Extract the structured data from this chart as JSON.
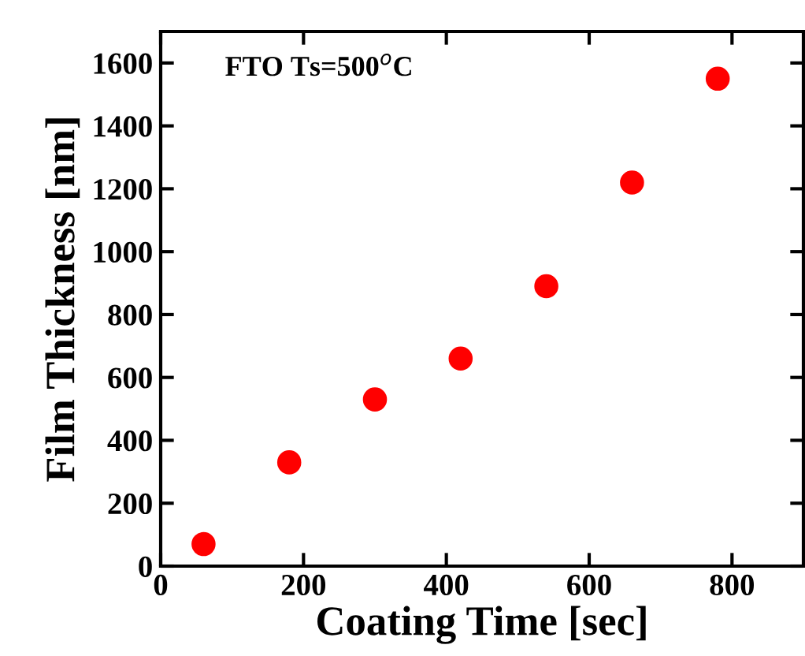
{
  "chart_data": {
    "type": "scatter",
    "xlabel": "Coating Time [sec]",
    "ylabel": "Film Thickness [nm]",
    "annotations": [
      "FTO Ts=500$^{o}$C"
    ],
    "x": [
      60,
      180,
      300,
      420,
      540,
      660,
      780
    ],
    "series": [
      {
        "color": "#ff0000",
        "values": [
          70,
          330,
          530,
          660,
          890,
          1220,
          1550
        ]
      }
    ],
    "xlim": [
      0,
      900
    ],
    "xticks": [
      0,
      200,
      400,
      600,
      800
    ],
    "ylim": [
      0,
      1700
    ],
    "yticks": [
      0,
      200,
      400,
      600,
      800,
      1000,
      1200,
      1400,
      1600
    ],
    "marker": "circle",
    "grid": false,
    "legend": false
  }
}
